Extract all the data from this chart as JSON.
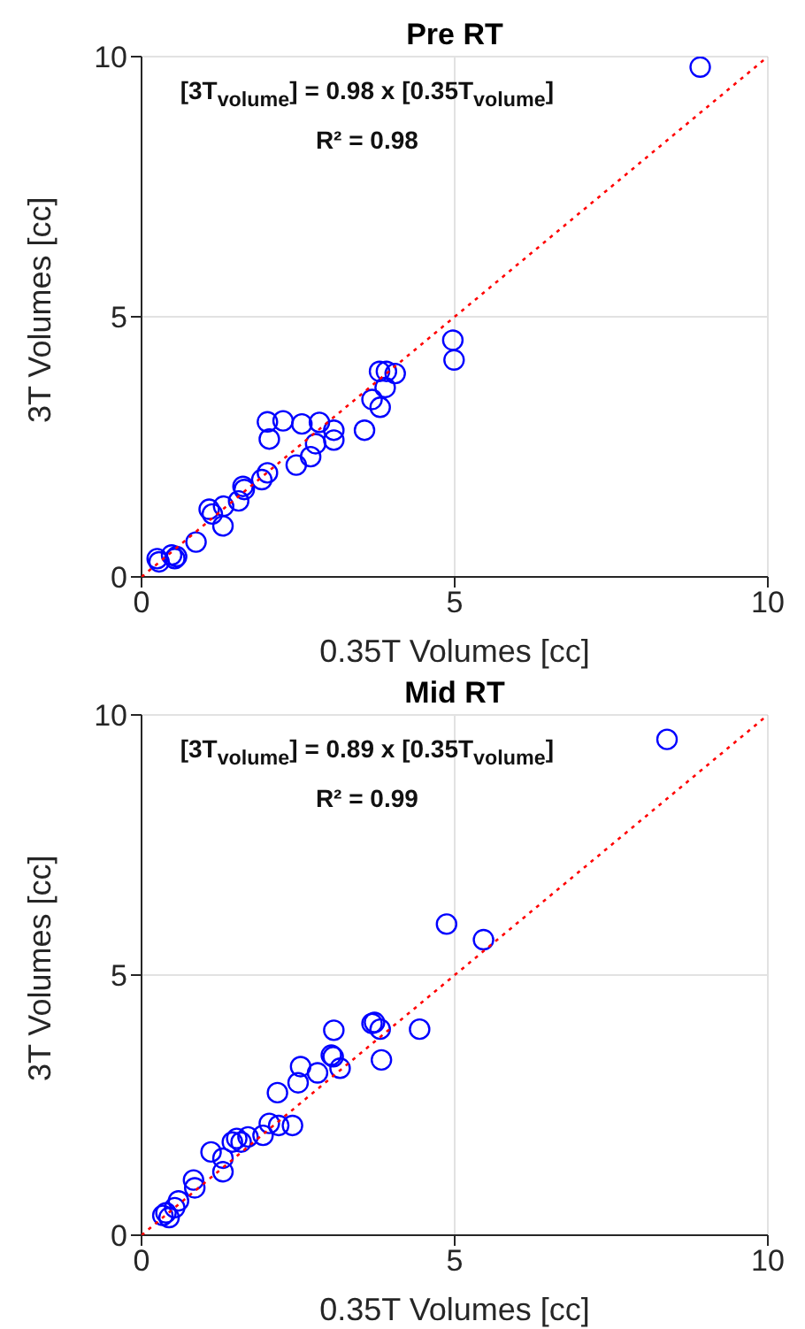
{
  "chart_data": [
    {
      "type": "scatter",
      "title": "Pre RT",
      "xlabel": "0.35T Volumes [cc]",
      "ylabel": "3T Volumes [cc]",
      "xlim": [
        0,
        10
      ],
      "ylim": [
        0,
        10
      ],
      "xticks": [
        0,
        5,
        10
      ],
      "yticks": [
        0,
        5,
        10
      ],
      "grid": true,
      "annotations": [
        "[3T$_{volume}$] = 0.98 x [0.35T$_{volume}$]",
        "R² = 0.98"
      ],
      "series": [
        {
          "marker": "circle",
          "color": "#0000ff",
          "x": [
            0.25,
            0.28,
            0.48,
            0.53,
            0.56,
            0.87,
            1.08,
            1.13,
            1.3,
            1.31,
            1.55,
            1.62,
            1.64,
            1.92,
            2.01,
            2.01,
            2.04,
            2.26,
            2.47,
            2.56,
            2.7,
            2.78,
            2.84,
            3.07,
            3.07,
            3.56,
            3.68,
            3.81,
            3.8,
            3.91,
            3.89,
            4.05,
            4.97,
            4.99,
            8.92
          ],
          "values": [
            0.35,
            0.29,
            0.42,
            0.35,
            0.39,
            0.67,
            1.3,
            1.21,
            0.98,
            1.36,
            1.46,
            1.74,
            1.68,
            1.87,
            2.0,
            2.98,
            2.65,
            3.0,
            2.15,
            2.94,
            2.31,
            2.56,
            2.97,
            2.82,
            2.63,
            2.82,
            3.41,
            3.26,
            3.95,
            3.95,
            3.64,
            3.91,
            4.55,
            4.17,
            9.8
          ]
        },
        {
          "type": "line",
          "color": "#ff0000",
          "line_style": "dotted",
          "x": [
            0,
            10
          ],
          "values": [
            0,
            10
          ]
        }
      ]
    },
    {
      "type": "scatter",
      "title": "Mid RT",
      "xlabel": "0.35T Volumes [cc]",
      "ylabel": "3T Volumes [cc]",
      "xlim": [
        0,
        10
      ],
      "ylim": [
        0,
        10
      ],
      "xticks": [
        0,
        5,
        10
      ],
      "yticks": [
        0,
        5,
        10
      ],
      "grid": true,
      "annotations": [
        "[3T$_{volume}$] = 0.89 x [0.35T$_{volume}$]",
        "R² = 0.99"
      ],
      "series": [
        {
          "marker": "circle",
          "color": "#0000ff",
          "x": [
            0.34,
            0.39,
            0.44,
            0.53,
            0.59,
            0.83,
            0.85,
            1.11,
            1.3,
            1.3,
            1.45,
            1.52,
            1.59,
            1.7,
            1.94,
            2.04,
            2.19,
            2.41,
            2.17,
            2.5,
            2.54,
            2.81,
            3.06,
            3.03,
            3.17,
            3.07,
            3.68,
            3.72,
            3.81,
            3.83,
            4.44,
            4.87,
            5.46,
            8.39
          ],
          "values": [
            0.38,
            0.43,
            0.34,
            0.53,
            0.66,
            1.06,
            0.91,
            1.6,
            1.48,
            1.22,
            1.79,
            1.86,
            1.79,
            1.89,
            1.92,
            2.15,
            2.11,
            2.11,
            2.74,
            2.93,
            3.24,
            3.12,
            3.43,
            3.46,
            3.21,
            3.94,
            4.07,
            4.09,
            3.96,
            3.37,
            3.96,
            5.98,
            5.68,
            9.53
          ]
        },
        {
          "type": "line",
          "color": "#ff0000",
          "line_style": "dotted",
          "x": [
            0,
            10
          ],
          "values": [
            0,
            10
          ]
        }
      ]
    }
  ]
}
